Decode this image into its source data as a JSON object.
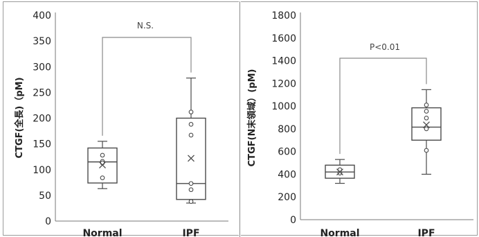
{
  "chart_data": [
    {
      "type": "box",
      "ylabel": "CTGF(全長)（pM)",
      "ylim": [
        0,
        400
      ],
      "yticks": [
        "0",
        "50",
        "100",
        "150",
        "200",
        "250",
        "300",
        "350",
        "400"
      ],
      "categories": [
        "Normal",
        "IPF"
      ],
      "annotation": "N.S.",
      "boxes": [
        {
          "category": "Normal",
          "min": 63,
          "q1": 74,
          "median": 115,
          "q3": 142,
          "max": 155,
          "mean": 109,
          "points": [
            128,
            116,
            113,
            84
          ]
        },
        {
          "category": "IPF",
          "min": 35,
          "q1": 42,
          "median": 73,
          "q3": 200,
          "max": 278,
          "mean": 122,
          "points": [
            212,
            188,
            167,
            73,
            61,
            38
          ]
        }
      ]
    },
    {
      "type": "box",
      "ylabel": "CTGF(N末領域）(pM)",
      "ylim": [
        0,
        1800
      ],
      "yticks": [
        "0",
        "200",
        "400",
        "600",
        "800",
        "1000",
        "1200",
        "1400",
        "1600",
        "1800"
      ],
      "categories": [
        "Normal",
        "IPF"
      ],
      "annotation": "P<0.01",
      "boxes": [
        {
          "category": "Normal",
          "min": 320,
          "q1": 365,
          "median": 420,
          "q3": 480,
          "max": 530,
          "mean": 420,
          "points": [
            440,
            410
          ]
        },
        {
          "category": "IPF",
          "min": 400,
          "q1": 700,
          "median": 815,
          "q3": 985,
          "max": 1145,
          "mean": 835,
          "points": [
            1010,
            955,
            895,
            800,
            610
          ]
        }
      ]
    }
  ]
}
